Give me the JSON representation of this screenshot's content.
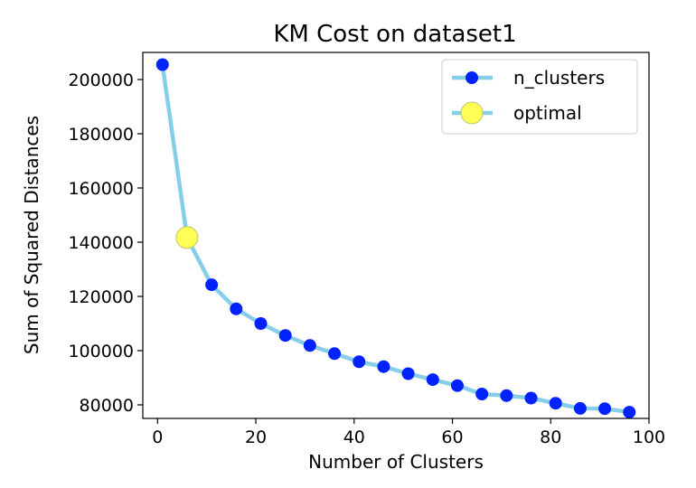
{
  "chart_data": {
    "type": "line",
    "title": "KM Cost on dataset1",
    "xlabel": "Number of Clusters",
    "ylabel": "Sum of Squared Distances",
    "xlim": [
      -3,
      100
    ],
    "ylim": [
      75000,
      210000
    ],
    "xticks": [
      0,
      20,
      40,
      60,
      80,
      100
    ],
    "yticks": [
      80000,
      100000,
      120000,
      140000,
      160000,
      180000,
      200000
    ],
    "xtick_labels": [
      "0",
      "20",
      "40",
      "60",
      "80",
      "100"
    ],
    "ytick_labels": [
      "80000",
      "100000",
      "120000",
      "140000",
      "160000",
      "180000",
      "200000"
    ],
    "legend_position": "top-right",
    "grid": false,
    "series": [
      {
        "name": "n_clusters",
        "line_color": "#87ceeb",
        "marker_color": "#0022ff",
        "x": [
          1,
          11,
          16,
          21,
          26,
          31,
          36,
          41,
          46,
          51,
          56,
          61,
          66,
          71,
          76,
          81,
          86,
          91,
          96
        ],
        "y": [
          205500,
          124300,
          115400,
          110000,
          105600,
          101900,
          98900,
          95900,
          94100,
          91500,
          89300,
          87100,
          84000,
          83400,
          82500,
          80600,
          78700,
          78600,
          77300
        ]
      }
    ],
    "optimal": {
      "name": "optimal",
      "x": 6,
      "y": 141700,
      "color": "#ffff55"
    }
  }
}
